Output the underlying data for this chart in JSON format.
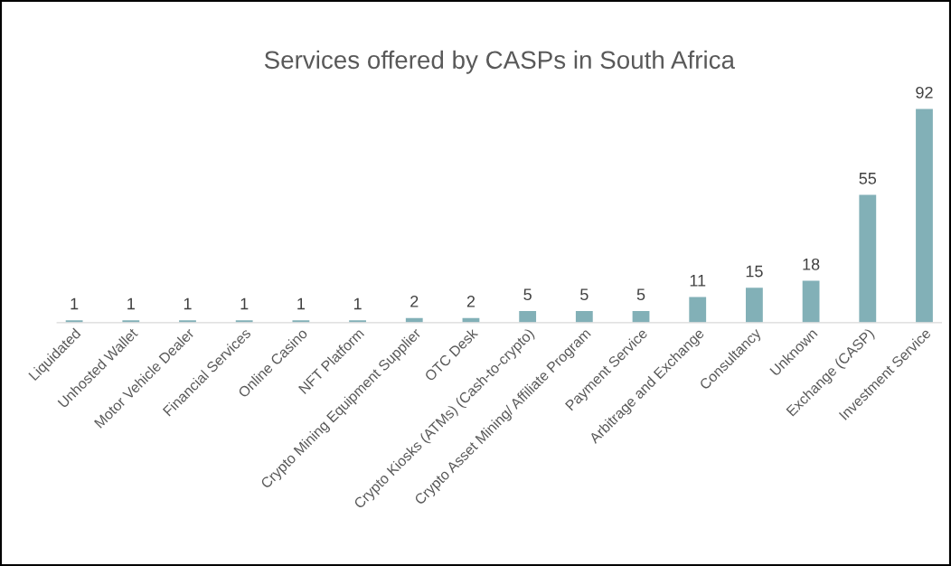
{
  "chart_data": {
    "type": "bar",
    "title": "Services offered by CASPs in South Africa",
    "categories": [
      "Liquidated",
      "Unhosted Wallet",
      "Motor Vehicle Dealer",
      "Financial Services",
      "Online Casino",
      "NFT Platform",
      "Crypto Mining Equipment Supplier",
      "OTC Desk",
      "Crypto Kiosks (ATMs) (Cash-to-crypto)",
      "Crypto Asset Mining/ Affiliate Program",
      "Payment Service",
      "Arbitrage and Exchange",
      "Consultancy",
      "Unknown",
      "Exchange (CASP)",
      "Investment Service"
    ],
    "values": [
      1,
      1,
      1,
      1,
      1,
      1,
      2,
      2,
      5,
      5,
      5,
      11,
      15,
      18,
      55,
      92
    ],
    "color": "#82b0b7",
    "data_labels": true,
    "grid": false,
    "legend": false,
    "tick_labels": "x"
  }
}
